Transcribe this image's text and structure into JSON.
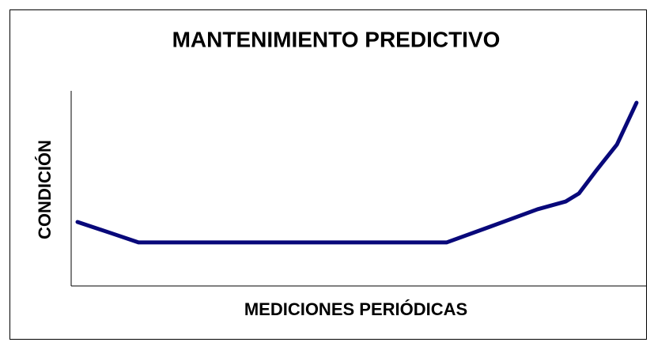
{
  "chart_data": {
    "type": "line",
    "title": "MANTENIMIENTO PREDICTIVO",
    "x_label": "MEDICIONES PERIÓDICAS",
    "y_label": "CONDICIÓN",
    "x": [
      1.1,
      6.9,
      11.7,
      65.2,
      72.8,
      81,
      85.9,
      88.2,
      91.3,
      94.8,
      98.2
    ],
    "values": [
      32.8,
      27.1,
      22.3,
      22.3,
      30.4,
      39.3,
      43.3,
      47.4,
      59.5,
      72.5,
      93.9
    ],
    "color": "#08087a",
    "xlim": [
      0,
      100
    ],
    "ylim": [
      0,
      100
    ]
  }
}
